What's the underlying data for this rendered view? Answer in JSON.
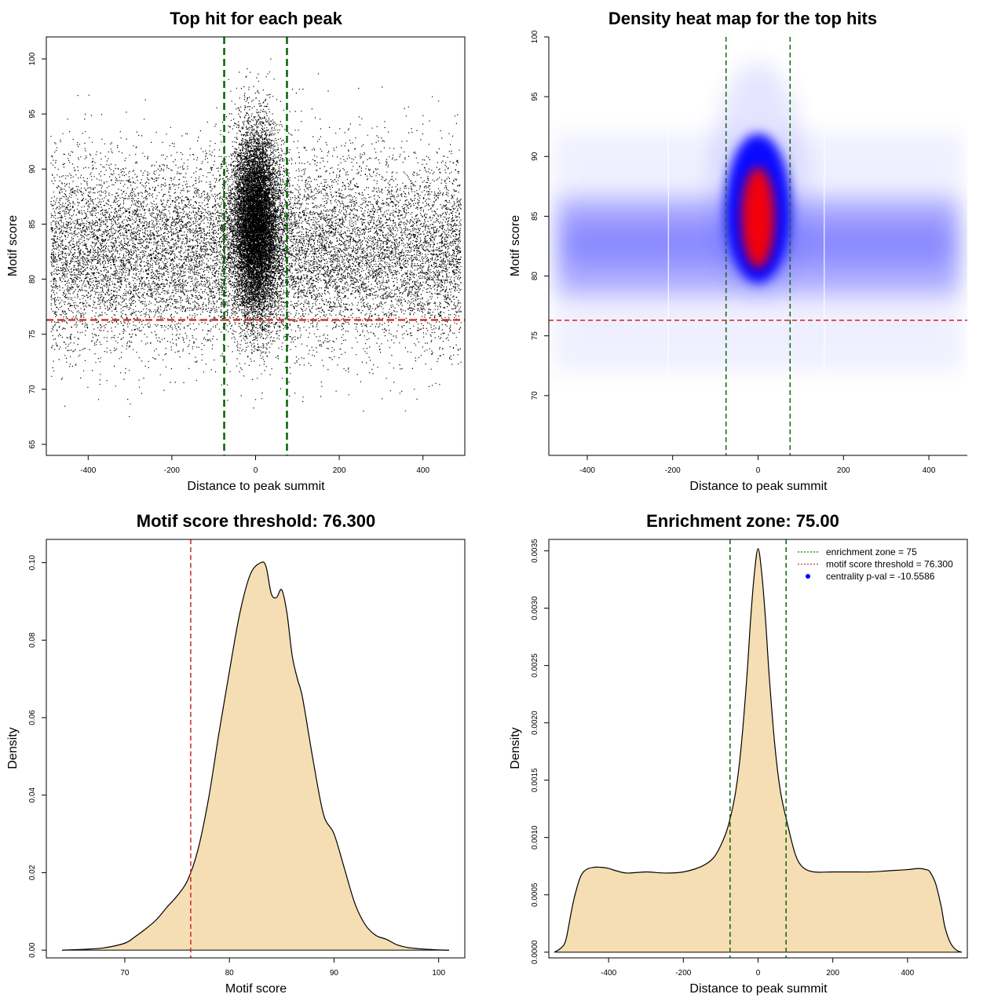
{
  "chart_data": [
    {
      "type": "scatter",
      "title": "Top hit for each peak",
      "xlabel": "Distance to peak summit",
      "ylabel": "Motif score",
      "xlim": [
        -500,
        500
      ],
      "ylim": [
        64,
        102
      ],
      "xticks": [
        -400,
        -200,
        0,
        200,
        400
      ],
      "yticks": [
        65,
        70,
        75,
        80,
        85,
        90,
        95,
        100
      ],
      "xtick_labels": [
        "-400",
        "-200",
        "0",
        "200",
        "400"
      ],
      "ytick_labels": [
        "65",
        "70",
        "75",
        "80",
        "85",
        "90",
        "95",
        "100"
      ],
      "vlines": [
        -75,
        75
      ],
      "hline": 76.3,
      "n_points": 26000,
      "point_distribution": {
        "background_fraction": 0.55,
        "center_fraction": 0.45,
        "center_mean_x": 0,
        "center_sd_x": 28,
        "center_mean_y": 85,
        "center_sd_y": 4.2,
        "background_mean_y": 82.5,
        "background_sd_y": 4.2
      }
    },
    {
      "type": "heatmap",
      "title": "Density heat map for the top hits",
      "xlabel": "Distance to peak summit",
      "ylabel": "Motif score",
      "xlim": [
        -490,
        490
      ],
      "ylim": [
        65,
        100
      ],
      "xticks": [
        -400,
        -200,
        0,
        200,
        400
      ],
      "yticks": [
        70,
        75,
        80,
        85,
        90,
        95,
        100
      ],
      "xtick_labels": [
        "-400",
        "-200",
        "0",
        "200",
        "400"
      ],
      "ytick_labels": [
        "70",
        "75",
        "80",
        "85",
        "90",
        "95",
        "100"
      ],
      "vlines": [
        -75,
        75
      ],
      "hline": 76.3,
      "density_peak": {
        "x": 0,
        "y": 85
      },
      "colors": [
        "#ffffff",
        "#0000ff",
        "#ff0000"
      ]
    },
    {
      "type": "area",
      "title": "Motif score threshold: 76.300",
      "xlabel": "Motif score",
      "ylabel": "Density",
      "xlim": [
        62.5,
        102.5
      ],
      "ylim": [
        -0.002,
        0.106
      ],
      "xticks": [
        70,
        80,
        90,
        100
      ],
      "yticks": [
        0.0,
        0.02,
        0.04,
        0.06,
        0.08,
        0.1
      ],
      "xtick_labels": [
        "70",
        "80",
        "90",
        "100"
      ],
      "ytick_labels": [
        "0.00",
        "0.02",
        "0.04",
        "0.06",
        "0.08",
        "0.10"
      ],
      "x": [
        64,
        66,
        68,
        70,
        71,
        72,
        73,
        74,
        75,
        76,
        77,
        78,
        79,
        80,
        81,
        82,
        83,
        83.5,
        84,
        84.5,
        85,
        85.5,
        86,
        86.5,
        87,
        88,
        89,
        90,
        91,
        92,
        93,
        94,
        95,
        96,
        97,
        98,
        99,
        100,
        101
      ],
      "values": [
        0.0,
        0.0002,
        0.0006,
        0.0018,
        0.0035,
        0.0055,
        0.0078,
        0.011,
        0.014,
        0.018,
        0.026,
        0.039,
        0.056,
        0.072,
        0.087,
        0.097,
        0.1,
        0.099,
        0.092,
        0.091,
        0.093,
        0.087,
        0.076,
        0.07,
        0.065,
        0.049,
        0.035,
        0.03,
        0.021,
        0.012,
        0.0065,
        0.0038,
        0.0028,
        0.0014,
        0.0007,
        0.0004,
        0.0002,
        5e-05,
        0.0
      ],
      "vline": 76.3,
      "fill": "#f5deb3"
    },
    {
      "type": "area",
      "title": "Enrichment zone: 75.00",
      "xlabel": "Distance to peak summit",
      "ylabel": "Density",
      "xlim": [
        -560,
        560
      ],
      "ylim": [
        -5e-05,
        0.0036
      ],
      "xticks": [
        -400,
        -200,
        0,
        200,
        400
      ],
      "yticks": [
        0.0,
        0.0005,
        0.001,
        0.0015,
        0.002,
        0.0025,
        0.003,
        0.0035
      ],
      "xtick_labels": [
        "-400",
        "-200",
        "0",
        "200",
        "400"
      ],
      "ytick_labels": [
        "0.0000",
        "0.0005",
        "0.0010",
        "0.0015",
        "0.0020",
        "0.0025",
        "0.0030",
        "0.0035"
      ],
      "x": [
        -545,
        -530,
        -515,
        -500,
        -490,
        -475,
        -460,
        -440,
        -420,
        -400,
        -380,
        -350,
        -300,
        -250,
        -200,
        -150,
        -120,
        -100,
        -80,
        -60,
        -45,
        -30,
        -20,
        -10,
        0,
        10,
        20,
        30,
        45,
        60,
        80,
        100,
        120,
        150,
        200,
        250,
        300,
        350,
        400,
        430,
        450,
        460,
        475,
        490,
        500,
        515,
        530,
        545
      ],
      "values": [
        0.0,
        3e-05,
        0.0001,
        0.00035,
        0.0005,
        0.00066,
        0.00072,
        0.00074,
        0.00074,
        0.00073,
        0.00071,
        0.00069,
        0.0007,
        0.00069,
        0.0007,
        0.00075,
        0.00082,
        0.00093,
        0.0011,
        0.0014,
        0.0018,
        0.0024,
        0.0029,
        0.0033,
        0.00352,
        0.0033,
        0.0029,
        0.0024,
        0.0018,
        0.0014,
        0.0011,
        0.00085,
        0.00074,
        0.0007,
        0.0007,
        0.0007,
        0.0007,
        0.00071,
        0.00072,
        0.00073,
        0.00072,
        0.0007,
        0.0006,
        0.0004,
        0.00022,
        8e-05,
        2e-05,
        0.0
      ],
      "vlines": [
        -75,
        75
      ],
      "fill": "#f5deb3",
      "legend": {
        "position": "top-right",
        "entries": [
          "enrichment zone = 75",
          "motif score threshold = 76.300",
          "centrality p-val = -10.5586"
        ]
      }
    }
  ]
}
